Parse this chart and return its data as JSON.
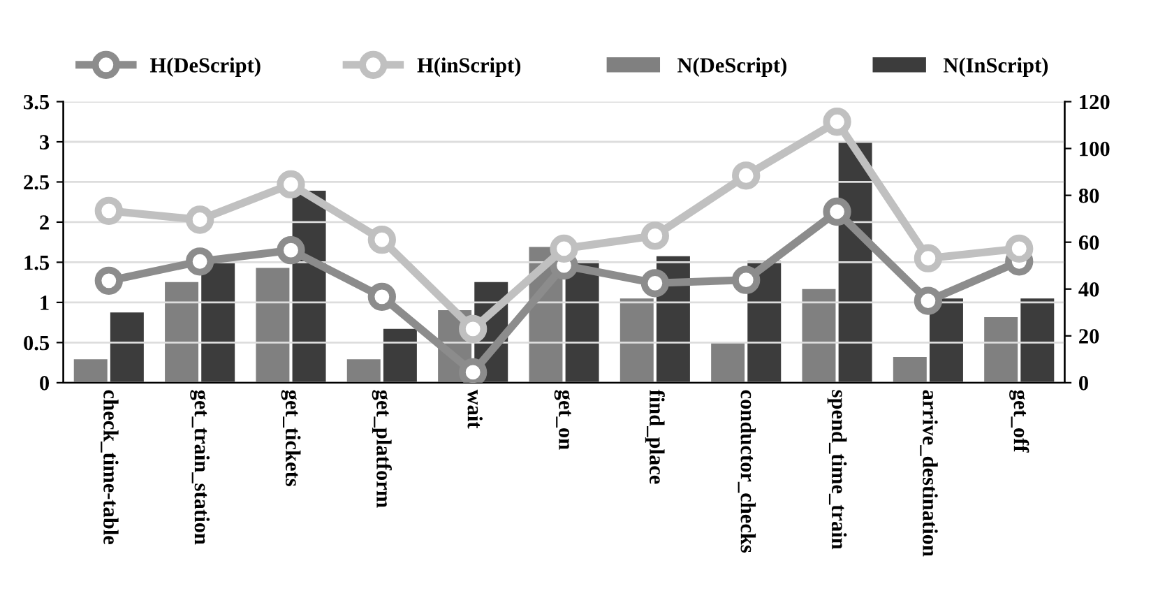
{
  "chart_data": {
    "type": "bar",
    "categories": [
      "check_time-table",
      "get_train_station",
      "get_tickets",
      "get_platform",
      "wait",
      "get_on",
      "find_place",
      "conductor_checks",
      "spend_time_train",
      "arrive_destination",
      "get_off"
    ],
    "series": [
      {
        "name": "H(DeScript)",
        "type": "line",
        "color": "#8c8c8c",
        "values": [
          1.27,
          1.51,
          1.65,
          1.07,
          0.13,
          1.46,
          1.24,
          1.28,
          2.13,
          1.02,
          1.51
        ]
      },
      {
        "name": "H(inScript)",
        "type": "line",
        "color": "#c0c0c0",
        "values": [
          2.14,
          2.03,
          2.47,
          1.78,
          0.67,
          1.67,
          1.83,
          2.58,
          3.25,
          1.55,
          1.67
        ]
      },
      {
        "name": "N(DeScript)",
        "axis": "y2",
        "color": "#808080",
        "values": [
          10,
          43,
          49,
          10,
          31,
          58,
          36,
          17,
          40,
          11,
          28
        ]
      },
      {
        "name": "N(InScript)",
        "axis": "y2",
        "color": "#3c3c3c",
        "values": [
          30,
          51,
          82,
          23,
          43,
          52,
          54,
          52,
          103,
          36,
          36
        ]
      }
    ],
    "ylim": [
      0,
      3.5
    ],
    "yticks": [
      0,
      0.5,
      1,
      1.5,
      2,
      2.5,
      3,
      3.5
    ],
    "y2lim": [
      0,
      120
    ],
    "y2ticks": [
      0,
      20,
      40,
      60,
      80,
      100,
      120
    ],
    "grid": "y",
    "legend": "top",
    "marker": "circle",
    "line_style": "solid"
  }
}
